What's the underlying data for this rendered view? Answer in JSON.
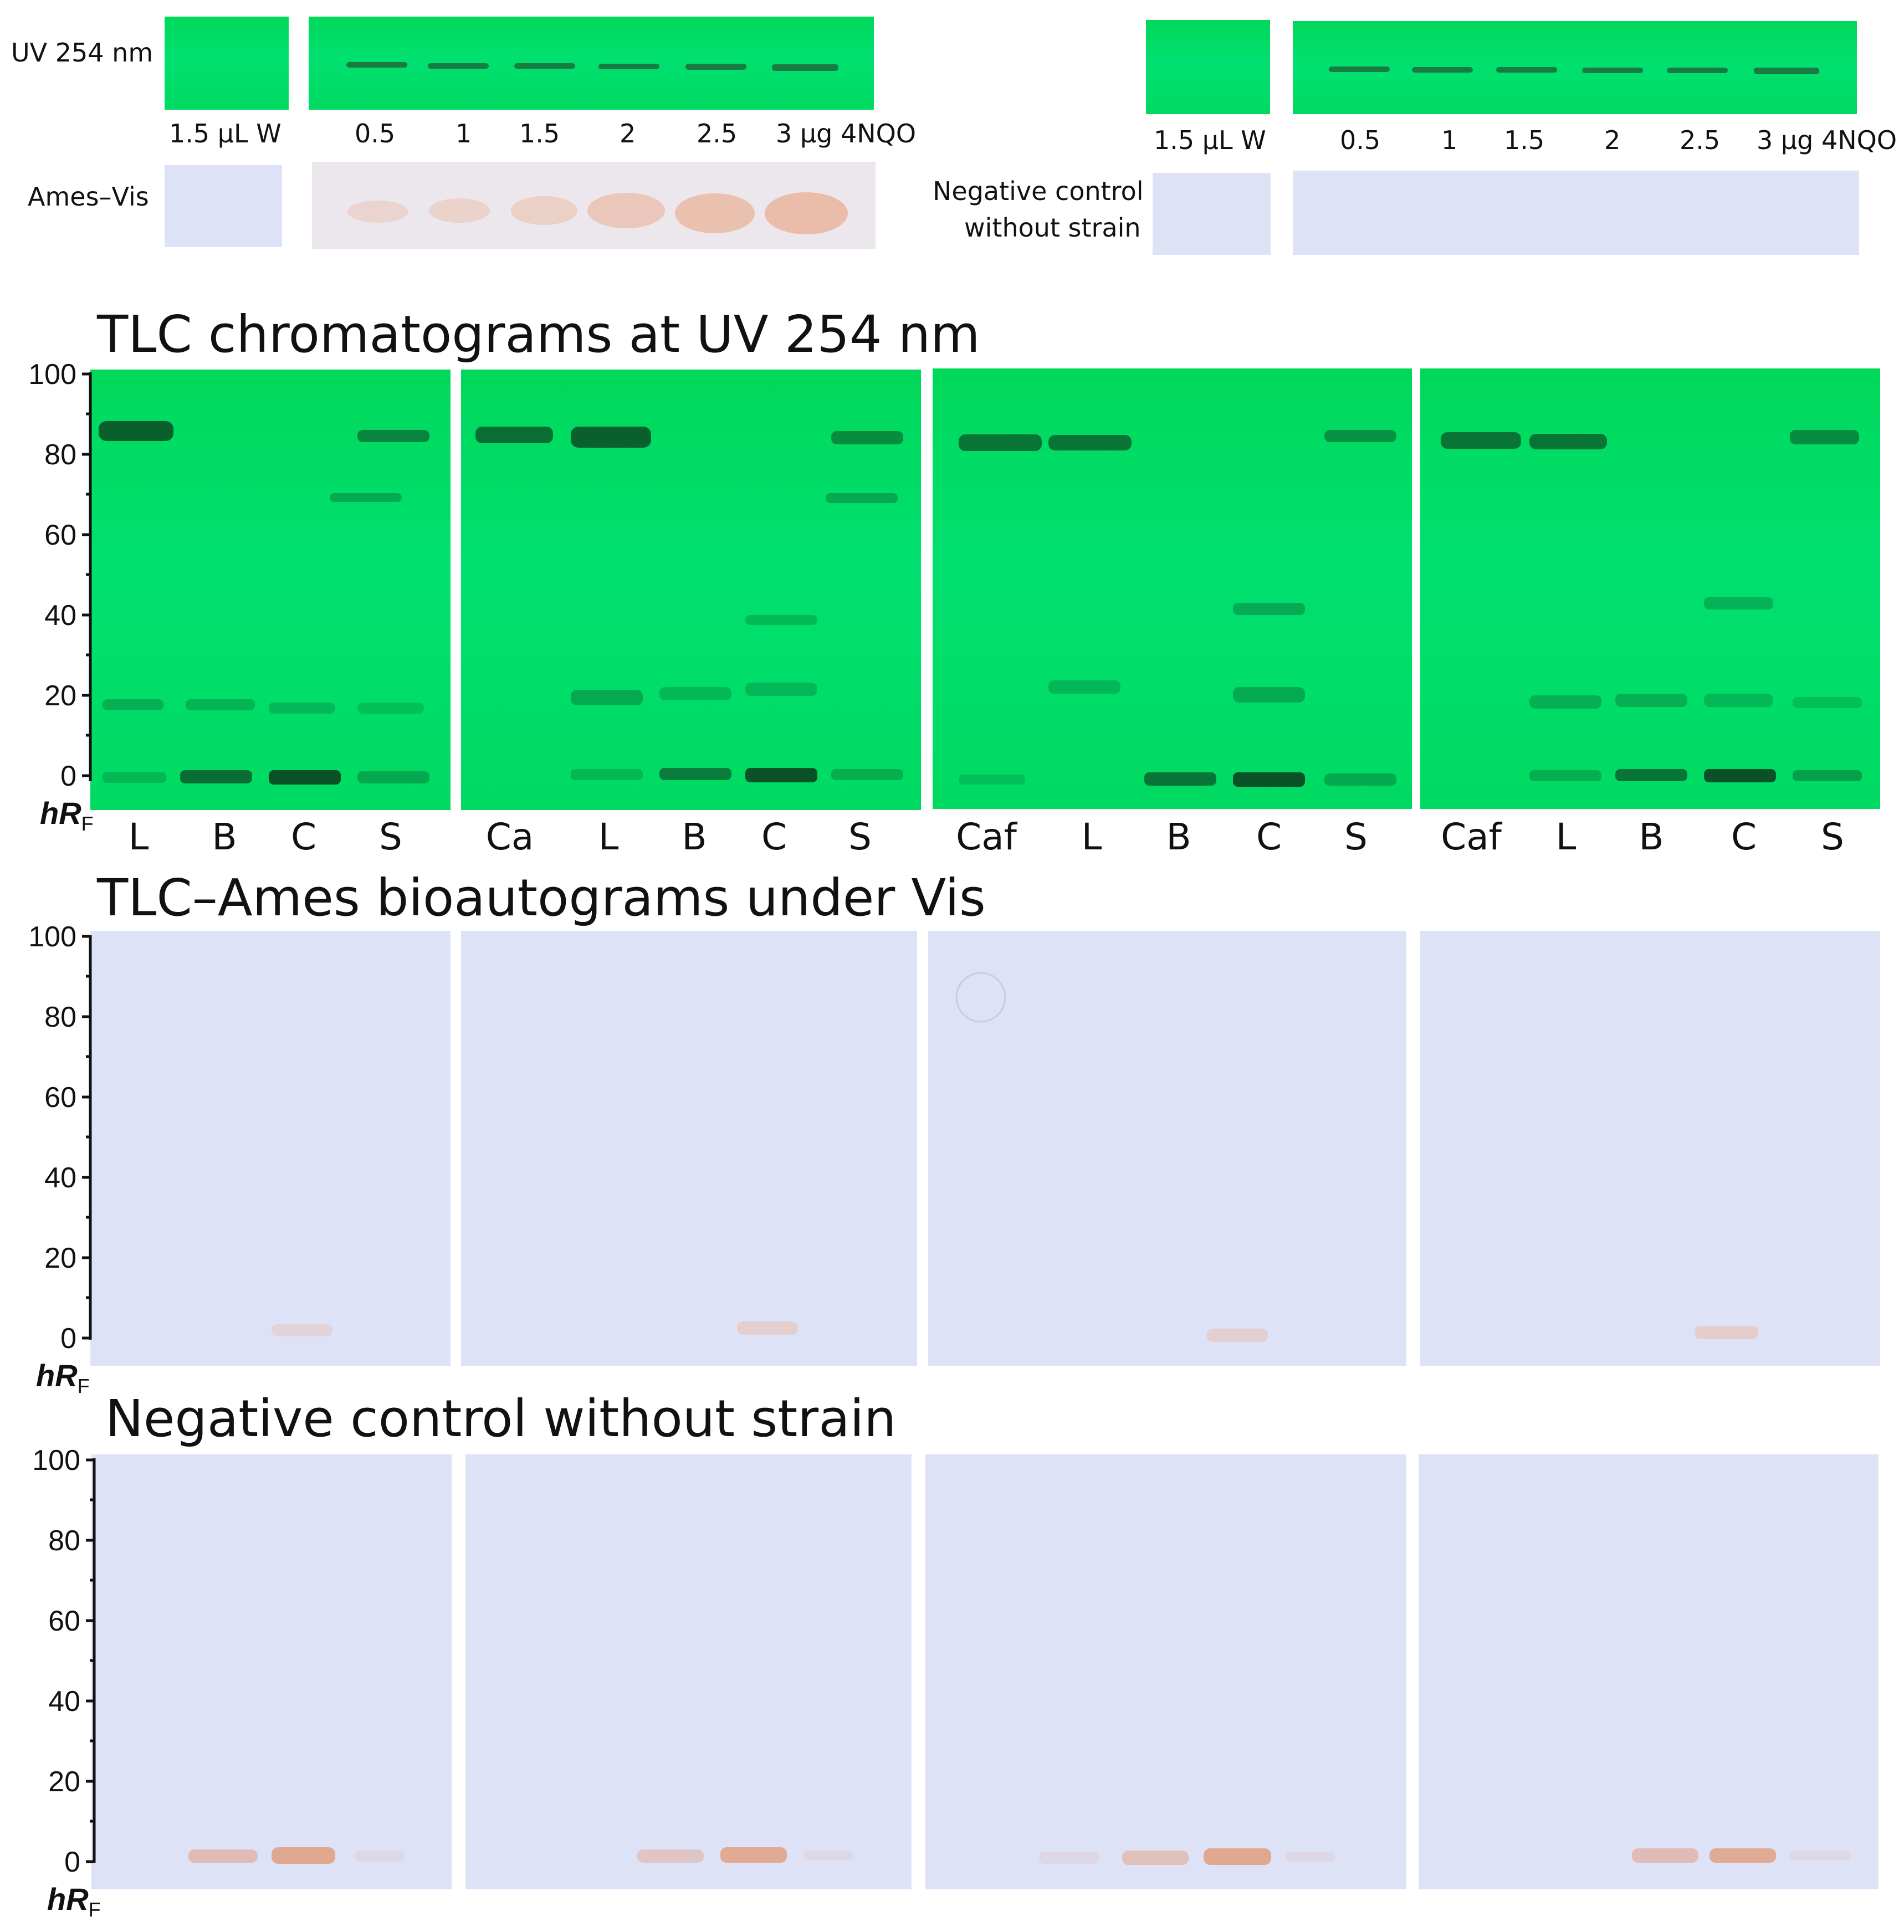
{
  "top": {
    "left": {
      "row_label_uv": "UV 254 nm",
      "row_label_vis": "Ames–Vis",
      "lane_labels": [
        "1.5 µL W",
        "0.5",
        "1",
        "1.5",
        "2",
        "2.5",
        "3 µg 4NQO"
      ]
    },
    "right": {
      "row_label_vis_line1": "Negative control",
      "row_label_vis_line2": "without strain",
      "lane_labels": [
        "1.5 µL W",
        "0.5",
        "1",
        "1.5",
        "2",
        "2.5",
        "3 µg 4NQO"
      ]
    }
  },
  "sections": {
    "uv_title": "TLC chromatograms at UV 254 nm",
    "ames_title": "TLC–Ames bioautograms under Vis",
    "neg_title": "Negative control without strain"
  },
  "axis": {
    "ticks": [
      "100",
      "80",
      "60",
      "40",
      "20",
      "0"
    ],
    "label_h": "hR",
    "label_sub": "F"
  },
  "plate_lanes": [
    [
      "L",
      "B",
      "C",
      "S"
    ],
    [
      "Ca",
      "L",
      "B",
      "C",
      "S"
    ],
    [
      "Caf",
      "L",
      "B",
      "C",
      "S"
    ],
    [
      "Caf",
      "L",
      "B",
      "C",
      "S"
    ]
  ],
  "colors": {
    "uv_green": "#00dc66",
    "vis_blue": "#dee2f6",
    "band_dark": "#0a3d1e",
    "band_orange": "#e7a58a"
  }
}
